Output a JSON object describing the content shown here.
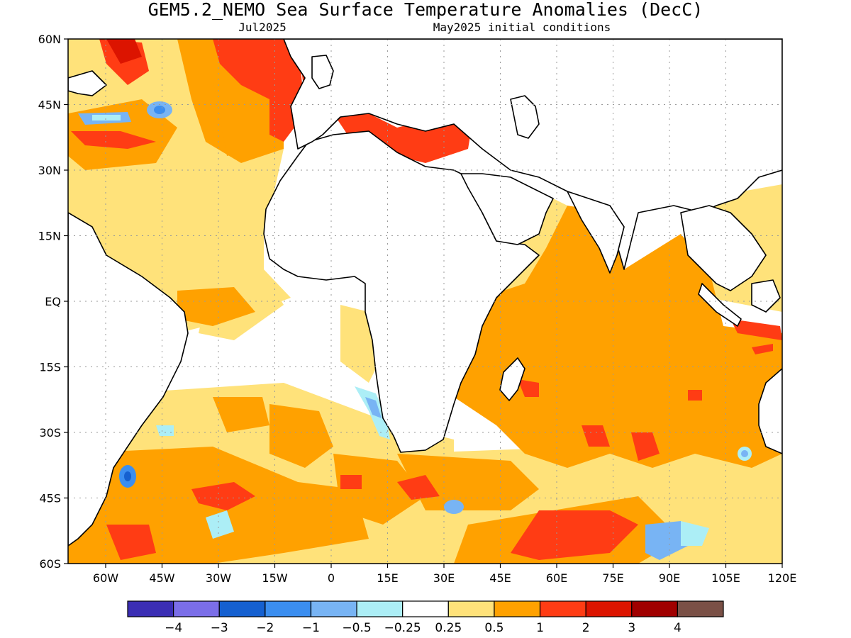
{
  "header": {
    "title": "GEM5.2_NEMO Sea Surface Temperature Anomalies (DecC)",
    "valid_month": "Jul2025",
    "init_conditions": "May2025 initial conditions"
  },
  "map": {
    "lon_range": [
      -70,
      120
    ],
    "lat_range": [
      -60,
      60
    ],
    "gridlines": true,
    "lon_tick_values": [
      -60,
      -45,
      -30,
      -15,
      0,
      15,
      30,
      45,
      60,
      75,
      90,
      105,
      120
    ],
    "lat_tick_values": [
      60,
      45,
      30,
      15,
      0,
      -15,
      -30,
      -45,
      -60
    ],
    "lon_ticks": [
      "60W",
      "45W",
      "30W",
      "15W",
      "0",
      "15E",
      "30E",
      "45E",
      "60E",
      "75E",
      "90E",
      "105E",
      "120E"
    ],
    "lat_ticks": [
      "60N",
      "45N",
      "30N",
      "15N",
      "EQ",
      "15S",
      "30S",
      "45S",
      "60S"
    ]
  },
  "colorbar": {
    "colors": [
      "#3b2eb4",
      "#7b6ee8",
      "#1560d0",
      "#3b8ef0",
      "#78b4f4",
      "#aceef6",
      "#ffffff",
      "#ffe27a",
      "#ffa100",
      "#ff3c14",
      "#dc1400",
      "#a00000",
      "#7a5046"
    ],
    "labels": [
      "−4",
      "−3",
      "−2",
      "−1",
      "−0.5",
      "−0.25",
      "0.25",
      "0.5",
      "1",
      "2",
      "3",
      "4"
    ]
  }
}
